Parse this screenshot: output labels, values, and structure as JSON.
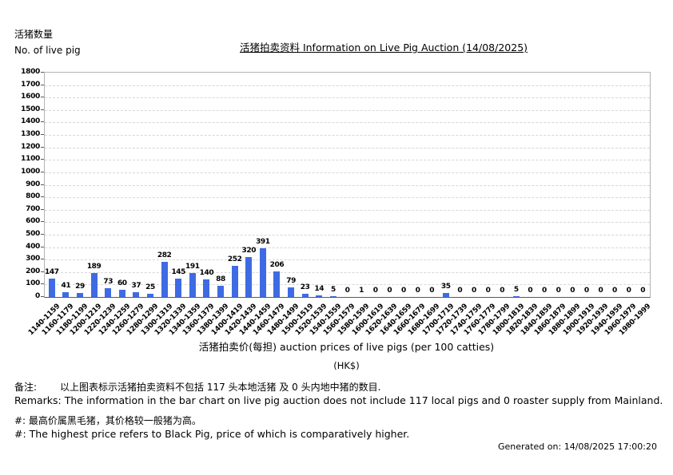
{
  "header": {
    "y_axis_unit_zh": "活猪数量",
    "y_axis_unit_en": "No. of live pig",
    "title": "活猪拍卖资料 Information on Live Pig Auction (14/08/2025)"
  },
  "chart_data": {
    "type": "bar",
    "title": "活猪拍卖资料 Information on Live Pig Auction (14/08/2025)",
    "xlabel": "活猪拍卖价(每担) auction prices of live pigs (per 100 catties)",
    "xlabel_unit": "(HK$)",
    "ylabel_zh": "活猪数量",
    "ylabel_en": "No. of live pig",
    "ylim": [
      0,
      1800
    ],
    "y_tick_step": 100,
    "y_ticks": [
      0,
      100,
      200,
      300,
      400,
      500,
      600,
      700,
      800,
      900,
      1000,
      1100,
      1200,
      1300,
      1400,
      1500,
      1600,
      1700,
      1800
    ],
    "grid": "horizontal-dashed",
    "legend": "none",
    "bar_color": "#3e6be4",
    "categories": [
      "1140-1159",
      "1160-1179",
      "1180-1199",
      "1200-1219",
      "1220-1239",
      "1240-1259",
      "1260-1279",
      "1280-1299",
      "1300-1319",
      "1320-1339",
      "1340-1359",
      "1360-1379",
      "1380-1399",
      "1400-1419",
      "1420-1439",
      "1440-1459",
      "1460-1479",
      "1480-1499",
      "1500-1519",
      "1520-1539",
      "1540-1559",
      "1560-1579",
      "1580-1599",
      "1600-1619",
      "1620-1639",
      "1640-1659",
      "1660-1679",
      "1680-1699",
      "1700-1719",
      "1720-1739",
      "1740-1759",
      "1760-1779",
      "1780-1799",
      "1800-1819",
      "1820-1839",
      "1840-1859",
      "1860-1879",
      "1880-1899",
      "1900-1919",
      "1920-1939",
      "1940-1959",
      "1960-1979",
      "1980-1999"
    ],
    "values": [
      147,
      41,
      29,
      189,
      73,
      60,
      37,
      25,
      282,
      145,
      191,
      140,
      88,
      252,
      320,
      391,
      206,
      79,
      23,
      14,
      5,
      0,
      1,
      0,
      0,
      0,
      0,
      0,
      35,
      0,
      0,
      0,
      0,
      5,
      0,
      0,
      0,
      0,
      0,
      0,
      0,
      0,
      0
    ]
  },
  "footer": {
    "remarks_zh_label": "备注:",
    "remarks_zh": "以上图表标示活猪拍卖资料不包括 117 头本地活猪 及 0 头内地中猪的数目.",
    "remarks_en": "Remarks: The information in the bar chart on live pig auction does not include 117 local pigs and 0 roaster supply from Mainland.",
    "note_zh": "#: 最高价属黑毛猪，其价格较一般猪为高。",
    "note_en": "#: The highest price refers to Black Pig, price of which is comparatively higher.",
    "generated_on": "Generated on: 14/08/2025 17:00:20"
  }
}
